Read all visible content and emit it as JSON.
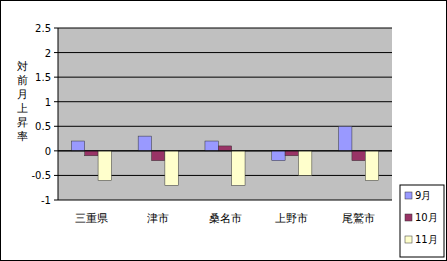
{
  "chart_data": {
    "type": "bar",
    "y_label": "対前月上昇率",
    "categories": [
      "三重県",
      "津市",
      "桑名市",
      "上野市",
      "尾鷲市"
    ],
    "series": [
      {
        "name": "9月",
        "color": "#9999ff",
        "values": [
          0.2,
          0.3,
          0.2,
          -0.2,
          0.5
        ]
      },
      {
        "name": "10月",
        "color": "#993366",
        "values": [
          -0.1,
          -0.2,
          0.1,
          -0.1,
          -0.2
        ]
      },
      {
        "name": "11月",
        "color": "#ffffcc",
        "values": [
          -0.6,
          -0.7,
          -0.7,
          -0.5,
          -0.6
        ]
      }
    ],
    "ylim": [
      -1,
      2.5
    ],
    "yticks": [
      -1,
      -0.5,
      0,
      0.5,
      1,
      1.5,
      2,
      2.5
    ],
    "grid": true,
    "legend": "bottom-right"
  }
}
